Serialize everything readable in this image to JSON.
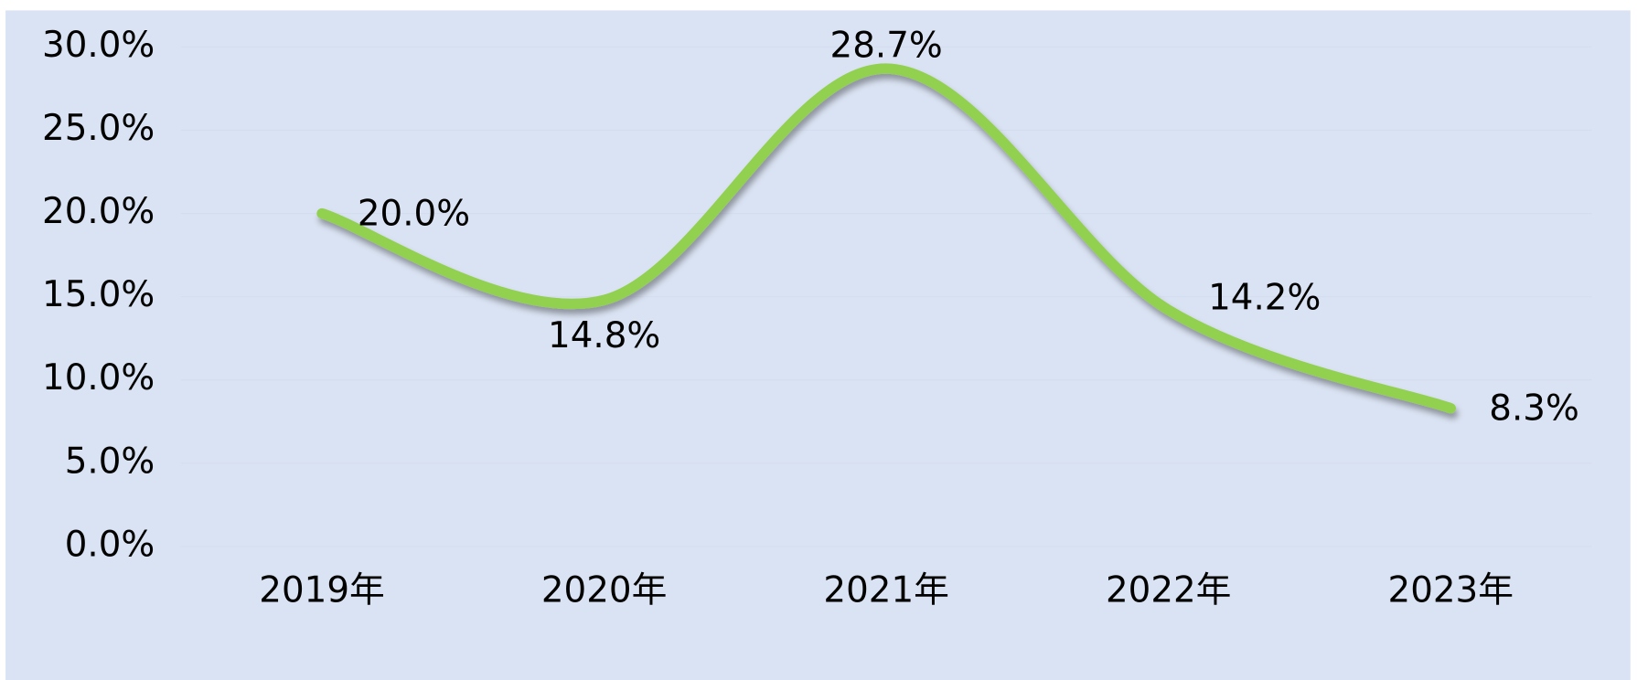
{
  "chart_data": {
    "type": "line",
    "categories": [
      "2019年",
      "2020年",
      "2021年",
      "2022年",
      "2023年"
    ],
    "values": [
      20.0,
      14.8,
      28.7,
      14.2,
      8.3
    ],
    "value_labels": [
      "20.0%",
      "14.8%",
      "28.7%",
      "14.2%",
      "8.3%"
    ],
    "color": "#92d050",
    "smooth": true,
    "ylim": [
      0,
      30
    ],
    "yticks": [
      {
        "value": 0,
        "label": "0.0%"
      },
      {
        "value": 5,
        "label": "5.0%"
      },
      {
        "value": 10,
        "label": "10.0%"
      },
      {
        "value": 15,
        "label": "15.0%"
      },
      {
        "value": 20,
        "label": "20.0%"
      },
      {
        "value": 25,
        "label": "25.0%"
      },
      {
        "value": 30,
        "label": "30.0%"
      }
    ],
    "grid": true
  }
}
